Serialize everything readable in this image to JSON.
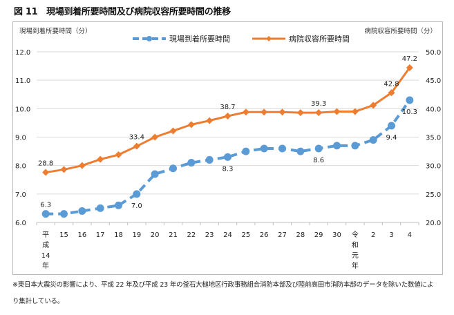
{
  "figure_title": "図 11　現場到着所要時間及び病院収容所要時間の推移",
  "footnote": {
    "line1": "※東日本大震災の影響により、平成 22 年及び平成 23 年の釜石大槌地区行政事務組合消防本部及び陸前高田市消防本部のデータを除いた数値によ",
    "line2": "り集計している。"
  },
  "chart_data": {
    "type": "line",
    "title": "現場到着所要時間及び病院収容所要時間の推移",
    "ylabel_left": "現場到着所要時間（分）",
    "ylabel_right": "病院収容所要時間（分）",
    "xlabel": "",
    "categories": [
      "平成14年",
      "15",
      "16",
      "17",
      "18",
      "19",
      "20",
      "21",
      "22",
      "23",
      "24",
      "25",
      "26",
      "27",
      "28",
      "29",
      "30",
      "令和元年",
      "2",
      "3",
      "4"
    ],
    "category_labels": [
      [
        "平",
        "成",
        "14",
        "年"
      ],
      [
        "15"
      ],
      [
        "16"
      ],
      [
        "17"
      ],
      [
        "18"
      ],
      [
        "19"
      ],
      [
        "20"
      ],
      [
        "21"
      ],
      [
        "22"
      ],
      [
        "23"
      ],
      [
        "24"
      ],
      [
        "25"
      ],
      [
        "26"
      ],
      [
        "27"
      ],
      [
        "28"
      ],
      [
        "29"
      ],
      [
        "30"
      ],
      [
        "令",
        "和",
        "元",
        "年"
      ],
      [
        "2"
      ],
      [
        "3"
      ],
      [
        "4"
      ]
    ],
    "ylim_left": [
      6.0,
      12.0
    ],
    "yticks_left": [
      "6.0",
      "7.0",
      "8.0",
      "9.0",
      "10.0",
      "11.0",
      "12.0"
    ],
    "ylim_right": [
      20.0,
      50.0
    ],
    "yticks_right": [
      "20.0",
      "25.0",
      "30.0",
      "35.0",
      "40.0",
      "45.0",
      "50.0"
    ],
    "grid": true,
    "legend_position": "top-center",
    "series": [
      {
        "name": "現場到着所要時間",
        "axis": "left",
        "color": "#5b9bd5",
        "style": "dashed",
        "marker": "circle",
        "values": [
          6.3,
          6.3,
          6.4,
          6.5,
          6.6,
          7.0,
          7.7,
          7.9,
          8.1,
          8.2,
          8.3,
          8.5,
          8.6,
          8.6,
          8.5,
          8.6,
          8.7,
          8.7,
          8.9,
          9.4,
          10.3
        ],
        "labeled": [
          {
            "index": 0,
            "text": "6.3",
            "pos": "above"
          },
          {
            "index": 5,
            "text": "7.0",
            "pos": "below"
          },
          {
            "index": 10,
            "text": "8.3",
            "pos": "below"
          },
          {
            "index": 15,
            "text": "8.6",
            "pos": "below"
          },
          {
            "index": 19,
            "text": "9.4",
            "pos": "below"
          },
          {
            "index": 20,
            "text": "10.3",
            "pos": "below"
          }
        ]
      },
      {
        "name": "病院収容所要時間",
        "axis": "right",
        "color": "#ed7d31",
        "style": "solid",
        "marker": "diamond",
        "values": [
          28.8,
          29.3,
          30.0,
          31.1,
          31.9,
          33.4,
          35.0,
          36.1,
          37.2,
          37.9,
          38.7,
          39.4,
          39.4,
          39.4,
          39.3,
          39.3,
          39.5,
          39.5,
          40.6,
          42.8,
          47.2
        ],
        "labeled": [
          {
            "index": 0,
            "text": "28.8",
            "pos": "above"
          },
          {
            "index": 5,
            "text": "33.4",
            "pos": "above"
          },
          {
            "index": 10,
            "text": "38.7",
            "pos": "above"
          },
          {
            "index": 15,
            "text": "39.3",
            "pos": "above"
          },
          {
            "index": 19,
            "text": "42.8",
            "pos": "above"
          },
          {
            "index": 20,
            "text": "47.2",
            "pos": "above"
          }
        ]
      }
    ]
  }
}
